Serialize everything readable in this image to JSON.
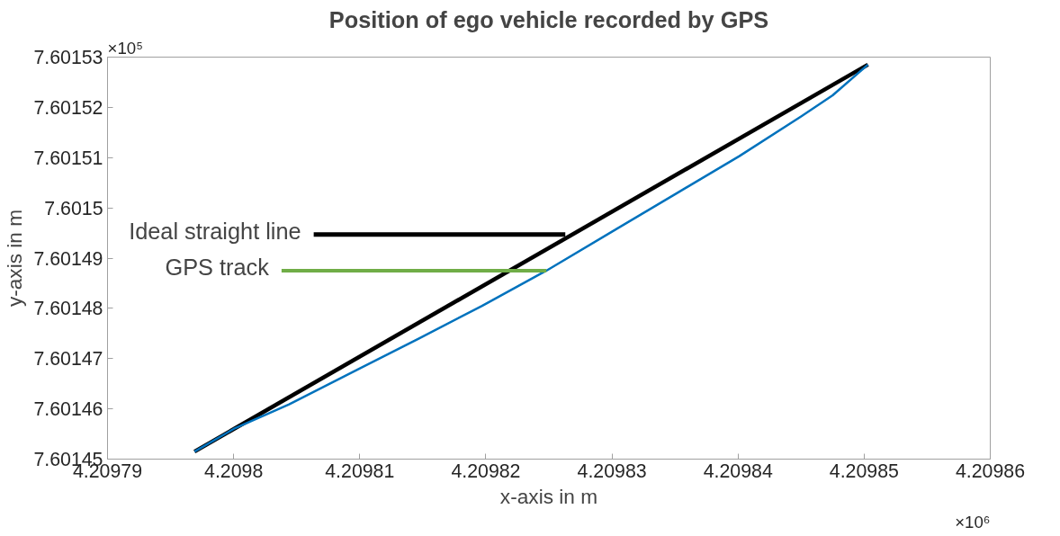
{
  "chart_data": {
    "type": "line",
    "title": "Position of ego vehicle recorded by GPS",
    "xlabel": "x-axis in m",
    "ylabel": "y-axis in m",
    "xlim": [
      4.20979,
      4.20986
    ],
    "xticks": [
      4.20979,
      4.2098,
      4.20981,
      4.20982,
      4.20983,
      4.20984,
      4.20985,
      4.20986
    ],
    "ylim": [
      7.60145,
      7.60153
    ],
    "yticks": [
      7.60145,
      7.60146,
      7.60147,
      7.60148,
      7.60149,
      7.6015,
      7.60151,
      7.60152,
      7.60153
    ],
    "grid": false,
    "marker": "none",
    "line_style": "solid",
    "annotations": [
      "×10⁶",
      "×10⁵",
      {
        "text": "Ideal straight line",
        "x": 4.2098263,
        "y": 7.6014947
      },
      {
        "text": "GPS track",
        "x": 4.2098248,
        "y": 7.6014875
      }
    ],
    "series": [
      {
        "color": "#000000",
        "x": [
          4.2097969,
          4.2098503
        ],
        "values": [
          7.6014515,
          7.6015285
        ]
      },
      {
        "color": "#0072bd",
        "x": [
          4.2097969,
          4.2098,
          4.2098044,
          4.2098098,
          4.2098147,
          4.2098197,
          4.2098248,
          4.2098303,
          4.2098352,
          4.2098401,
          4.209845,
          4.2098475,
          4.2098503
        ],
        "values": [
          7.6014515,
          7.601456,
          7.6014609,
          7.6014678,
          7.601474,
          7.6014805,
          7.6014875,
          7.6014957,
          7.601503,
          7.6015103,
          7.6015182,
          7.6015224,
          7.6015285
        ]
      }
    ]
  }
}
